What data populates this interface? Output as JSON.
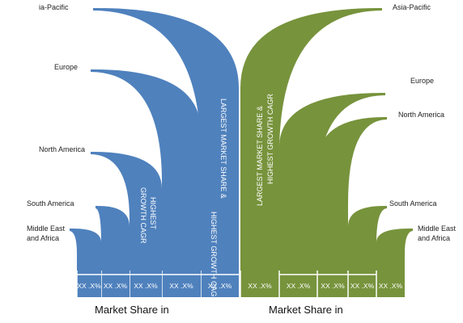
{
  "left": {
    "regions": [
      [
        "ia-Pacific"
      ],
      [
        "Europe"
      ],
      [
        "North America"
      ],
      [
        "South America"
      ],
      [
        "Middle East",
        "and Africa"
      ]
    ],
    "cells": [
      "XX .X%",
      "XX .X%",
      "XX .X%",
      "XX .X%",
      "XX .X%"
    ],
    "notes": [
      [
        "HIGHEST",
        "GROWTH CAGR"
      ],
      [
        "LARGEST MARKET SHARE &",
        "HIGHEST GROWTH CAGR"
      ]
    ],
    "footer": "Market Share in"
  },
  "right": {
    "regions": [
      [
        "Asia-Pacific"
      ],
      [
        "Europe"
      ],
      [
        "North America"
      ],
      [
        "South America"
      ],
      [
        "Middle East",
        "and Africa"
      ]
    ],
    "cells": [
      "XX .X%",
      "XX .X%",
      "XX .X%",
      "XX .X%",
      "XX .X%"
    ],
    "notes": [
      [
        "LARGEST MARKET SHARE &",
        "HIGHEST GROWTH CAGR"
      ]
    ],
    "footer": "Market Share in"
  }
}
